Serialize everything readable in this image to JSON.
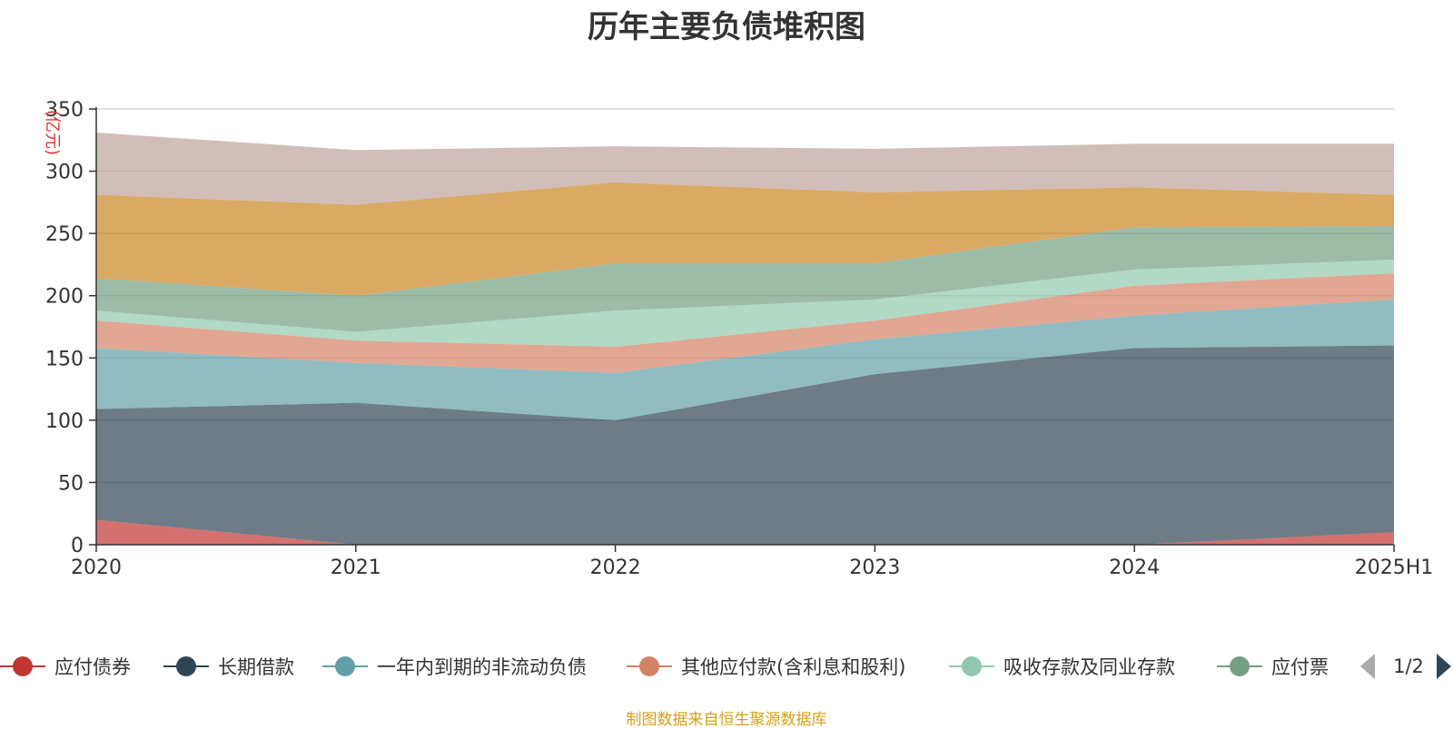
{
  "chart_data": {
    "type": "area",
    "stacked": true,
    "title": "历年主要负债堆积图",
    "ylabel": "(亿元)",
    "categories": [
      "2020",
      "2021",
      "2022",
      "2023",
      "2024",
      "2025H1"
    ],
    "ylim": [
      0,
      350
    ],
    "yticks": [
      0,
      50,
      100,
      150,
      200,
      250,
      300,
      350
    ],
    "grid": true,
    "legend_position": "bottom",
    "legend_page": "1/2",
    "series": [
      {
        "name": "应付债券",
        "color": "#c23531",
        "values": [
          20,
          0,
          0,
          0,
          0,
          10
        ]
      },
      {
        "name": "长期借款",
        "color": "#2f4554",
        "values": [
          89,
          114,
          100,
          137,
          158,
          150
        ]
      },
      {
        "name": "一年内到期的非流动负债",
        "color": "#61a0a8",
        "values": [
          49,
          32,
          38,
          28,
          26,
          37
        ]
      },
      {
        "name": "其他应付款(含利息和股利)",
        "color": "#d48265",
        "values": [
          22,
          18,
          21,
          15,
          24,
          21
        ]
      },
      {
        "name": "吸收存款及同业存款",
        "color": "#91c7ae",
        "values": [
          8,
          7,
          29,
          17,
          13,
          11
        ]
      },
      {
        "name": "应付票",
        "color": "#749f83",
        "values": [
          26,
          29,
          38,
          29,
          34,
          27
        ]
      },
      {
        "name": "",
        "color": "#ca8622",
        "values": [
          67,
          73,
          65,
          57,
          32,
          25
        ]
      },
      {
        "name": "",
        "color": "#bda29a",
        "values": [
          50,
          44,
          29,
          35,
          35,
          41
        ]
      }
    ]
  },
  "source_note": "制图数据来自恒生聚源数据库"
}
